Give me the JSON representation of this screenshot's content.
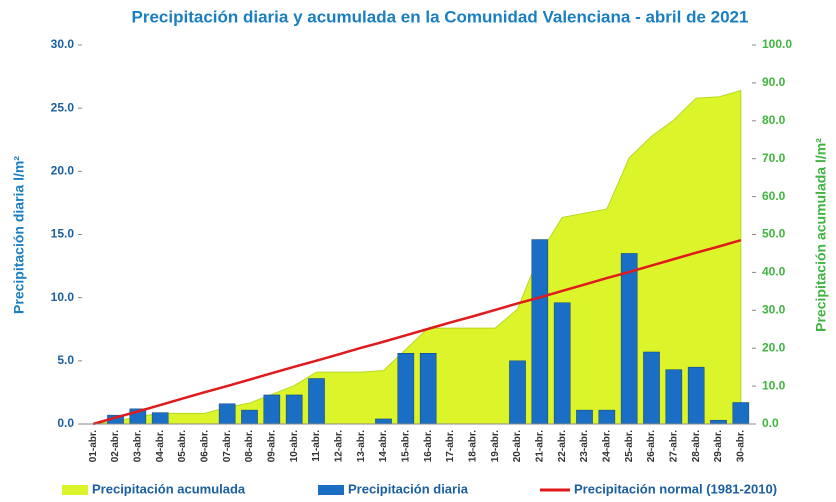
{
  "chart_data": {
    "type": "bar-area-line",
    "title": "Precipitación diaria y acumulada en la Comunidad Valenciana - abril de 2021",
    "ylabel": "Precipitación diaria l/m²",
    "y2label": "Precipitación acumulada l/m²",
    "categories": [
      "01-abr.",
      "02-abr.",
      "03-abr.",
      "04-abr.",
      "05-abr.",
      "06-abr.",
      "07-abr.",
      "08-abr.",
      "09-abr.",
      "10-abr.",
      "11-abr.",
      "12-abr.",
      "13-abr.",
      "14-abr.",
      "15-abr.",
      "16-abr.",
      "17-abr.",
      "18-abr.",
      "19-abr.",
      "20-abr.",
      "21-abr.",
      "22-abr.",
      "23-abr.",
      "24-abr.",
      "25-abr.",
      "26-abr.",
      "27-abr.",
      "28-abr.",
      "29-abr.",
      "30-abr."
    ],
    "series": [
      {
        "name": "Precipitación acumulada",
        "color": "#dcf52a",
        "axis": "y2",
        "kind": "area",
        "values": [
          0,
          0.7,
          1.9,
          2.8,
          2.8,
          2.8,
          4.4,
          5.5,
          7.8,
          10.1,
          13.7,
          13.7,
          13.7,
          14.1,
          19.7,
          25.3,
          25.3,
          25.3,
          25.3,
          30.3,
          44.9,
          54.5,
          55.6,
          56.7,
          70.2,
          75.9,
          80.2,
          86,
          86.3,
          88
        ]
      },
      {
        "name": "Precipitación diaria",
        "color": "#1a6fc4",
        "axis": "y",
        "kind": "bar",
        "values": [
          0,
          0.7,
          1.2,
          0.9,
          0,
          0,
          1.6,
          1.1,
          2.3,
          2.3,
          3.6,
          0,
          0,
          0.4,
          5.6,
          5.6,
          0,
          0,
          0,
          5.0,
          14.6,
          9.6,
          1.1,
          1.1,
          13.5,
          5.7,
          4.3,
          4.5,
          0.3,
          1.7
        ]
      },
      {
        "name": "Precipitación normal (1981-2010)",
        "color": "#e0191c",
        "axis": "y2",
        "kind": "line",
        "values": [
          0,
          1.7,
          3.3,
          5.0,
          6.7,
          8.4,
          10.0,
          11.7,
          13.4,
          15.1,
          16.7,
          18.4,
          20.1,
          21.7,
          23.4,
          25.1,
          26.8,
          28.4,
          30.1,
          31.8,
          33.4,
          35.1,
          36.8,
          38.5,
          40.1,
          41.8,
          43.5,
          45.2,
          46.8,
          48.5
        ]
      }
    ],
    "ylim": [
      0,
      30
    ],
    "yticks": [
      {
        "value": 0,
        "label": "0.0"
      },
      {
        "value": 5,
        "label": "5.0"
      },
      {
        "value": 10,
        "label": "10.0"
      },
      {
        "value": 15,
        "label": "15.0"
      },
      {
        "value": 20,
        "label": "20.0"
      },
      {
        "value": 25,
        "label": "25.0"
      },
      {
        "value": 30,
        "label": "30.0"
      }
    ],
    "y2lim": [
      0,
      100
    ],
    "y2ticks": [
      {
        "value": 0,
        "label": "0.0"
      },
      {
        "value": 10,
        "label": "10.0"
      },
      {
        "value": 20,
        "label": "20.0"
      },
      {
        "value": 30,
        "label": "30.0"
      },
      {
        "value": 40,
        "label": "40.0"
      },
      {
        "value": 50,
        "label": "50.0"
      },
      {
        "value": 60,
        "label": "60.0"
      },
      {
        "value": 70,
        "label": "70.0"
      },
      {
        "value": 80,
        "label": "80.0"
      },
      {
        "value": 90,
        "label": "90.0"
      },
      {
        "value": 100,
        "label": "100.0"
      }
    ],
    "grid": false
  }
}
